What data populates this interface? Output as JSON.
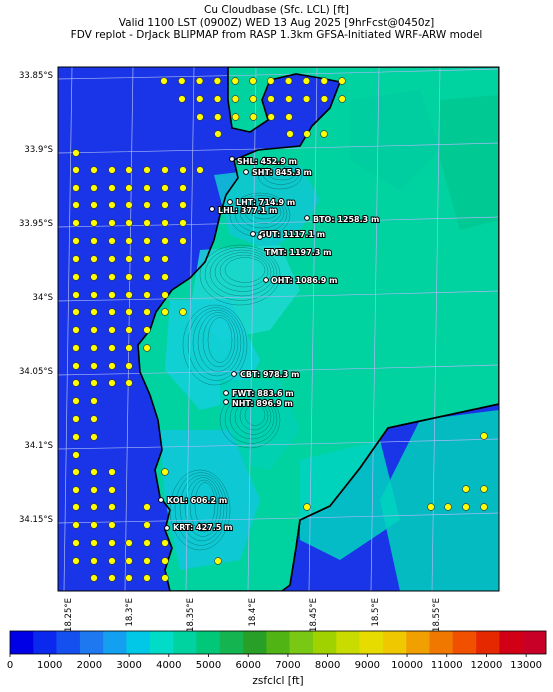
{
  "title": {
    "line1": "Cu Cloudbase (Sfc. LCL) [ft]",
    "line2": "Valid 1100 LST (0900Z) WED 13 Aug 2025 [9hrFcst@0450z]",
    "line3": "FDV replot - DrJack BLIPMAP from RASP 1.3km GFSA-Initiated WRF-ARW model"
  },
  "lat_labels": [
    "33.85°S",
    "33.9°S",
    "33.95°S",
    "34°S",
    "34.05°S",
    "34.1°S",
    "34.15°S"
  ],
  "lon_labels": [
    "18.25°E",
    "18.3°E",
    "18.35°E",
    "18.4°E",
    "18.45°E",
    "18.5°E",
    "18.55°E"
  ],
  "sites": [
    {
      "code": "SHL",
      "value": "452.9 m",
      "label": "SHL: 452.9 m"
    },
    {
      "code": "SHT",
      "value": "845.3 m",
      "label": "SHT: 845.3 m"
    },
    {
      "code": "LHT",
      "value": "714.9 m",
      "label": "LHT: 714.9 m"
    },
    {
      "code": "LHL",
      "value": "377.1 m",
      "label": "LHL: 377.1 m"
    },
    {
      "code": "BTO",
      "value": "1258.3 m",
      "label": "BTO: 1258.3 m"
    },
    {
      "code": "GUT",
      "value": "1117.1 m",
      "label": "GUT: 1117.1 m"
    },
    {
      "code": "TMT",
      "value": "1197.3 m",
      "label": "TMT: 1197.3 m"
    },
    {
      "code": "OHT",
      "value": "1086.9 m",
      "label": "OHT: 1086.9 m"
    },
    {
      "code": "CBT",
      "value": "978.3 m",
      "label": "CBT: 978.3 m"
    },
    {
      "code": "FWT",
      "value": "883.6 m",
      "label": "FWT: 883.6 m"
    },
    {
      "code": "NHT",
      "value": "896.9 m",
      "label": "NHT: 896.9 m"
    },
    {
      "code": "KOL",
      "value": "606.2 m",
      "label": "KOL: 606.2 m"
    },
    {
      "code": "KRT",
      "value": "427.5 m",
      "label": "KRT: 427.5 m"
    }
  ],
  "colorbar": {
    "ticks": [
      "0",
      "1000",
      "2000",
      "3000",
      "4000",
      "5000",
      "6000",
      "7000",
      "8000",
      "9000",
      "10000",
      "11000",
      "12000",
      "13000"
    ],
    "label": "zsfclcl [ft]",
    "min": 0,
    "max": 13500,
    "colors": [
      "#0000e6",
      "#0a28ee",
      "#1450f0",
      "#1e78f0",
      "#14a0f0",
      "#00c8e6",
      "#00dcc8",
      "#00d2a0",
      "#00c878",
      "#14b450",
      "#28a028",
      "#50b414",
      "#78c814",
      "#a0d200",
      "#c8dc00",
      "#e6dc00",
      "#f0c800",
      "#f0a000",
      "#f07800",
      "#f05000",
      "#e62800",
      "#d20014",
      "#c80028"
    ]
  },
  "colors": {
    "sea": "#1a35e8",
    "land_low": "#00d2a0",
    "land_mid": "#1ee0c8",
    "coast": "#000000",
    "marker": "#ffff00"
  }
}
